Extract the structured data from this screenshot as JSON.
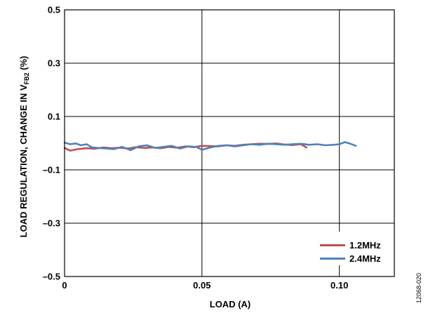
{
  "chart_data": {
    "type": "line",
    "xlabel": "LOAD (A)",
    "ylabel": {
      "main": "LOAD REGULATION, CHANGE IN V",
      "subscript": "FB2",
      "suffix": " (%)"
    },
    "xlim": [
      0,
      0.12
    ],
    "ylim": [
      -0.5,
      0.5
    ],
    "x_ticks": [
      {
        "value": 0,
        "label": "0"
      },
      {
        "value": 0.05,
        "label": "0.05"
      },
      {
        "value": 0.1,
        "label": "0.10"
      }
    ],
    "y_ticks": [
      {
        "value": 0.5,
        "label": "0.5"
      },
      {
        "value": 0.3,
        "label": "0.3"
      },
      {
        "value": 0.1,
        "label": "0.1"
      },
      {
        "value": -0.1,
        "label": "–0.1"
      },
      {
        "value": -0.3,
        "label": "–0.3"
      },
      {
        "value": -0.5,
        "label": "–0.5"
      }
    ],
    "grid": true,
    "legend_position": "bottom-right",
    "series": [
      {
        "name": "1.2MHz",
        "color": "#c0504d",
        "x": [
          0,
          0.002,
          0.005,
          0.008,
          0.011,
          0.014,
          0.017,
          0.02,
          0.023,
          0.026,
          0.029,
          0.032,
          0.035,
          0.038,
          0.041,
          0.044,
          0.047,
          0.05,
          0.053,
          0.056,
          0.059,
          0.062,
          0.065,
          0.068,
          0.071,
          0.074,
          0.077,
          0.08,
          0.083,
          0.086,
          0.088
        ],
        "y": [
          -0.018,
          -0.028,
          -0.022,
          -0.019,
          -0.021,
          -0.016,
          -0.019,
          -0.017,
          -0.02,
          -0.015,
          -0.018,
          -0.016,
          -0.019,
          -0.014,
          -0.017,
          -0.012,
          -0.015,
          -0.01,
          -0.011,
          -0.012,
          -0.008,
          -0.01,
          -0.006,
          -0.004,
          -0.002,
          -0.003,
          -0.001,
          -0.005,
          -0.007,
          -0.004,
          -0.016
        ]
      },
      {
        "name": "2.4MHz",
        "color": "#4f81bd",
        "x": [
          0,
          0.002,
          0.004,
          0.006,
          0.008,
          0.01,
          0.012,
          0.015,
          0.018,
          0.021,
          0.024,
          0.027,
          0.03,
          0.033,
          0.036,
          0.039,
          0.042,
          0.045,
          0.048,
          0.05,
          0.053,
          0.056,
          0.059,
          0.062,
          0.065,
          0.068,
          0.071,
          0.074,
          0.077,
          0.08,
          0.083,
          0.086,
          0.089,
          0.092,
          0.095,
          0.098,
          0.1,
          0.102,
          0.104,
          0.106
        ],
        "y": [
          0.002,
          -0.004,
          -0.001,
          -0.008,
          -0.004,
          -0.016,
          -0.018,
          -0.02,
          -0.022,
          -0.014,
          -0.026,
          -0.012,
          -0.008,
          -0.018,
          -0.014,
          -0.01,
          -0.02,
          -0.012,
          -0.014,
          -0.025,
          -0.016,
          -0.01,
          -0.008,
          -0.012,
          -0.008,
          -0.004,
          -0.006,
          -0.002,
          -0.004,
          -0.006,
          -0.004,
          -0.002,
          -0.006,
          -0.004,
          -0.008,
          -0.006,
          -0.004,
          0.004,
          -0.002,
          -0.01
        ]
      }
    ]
  },
  "figure_code": "12068-020"
}
